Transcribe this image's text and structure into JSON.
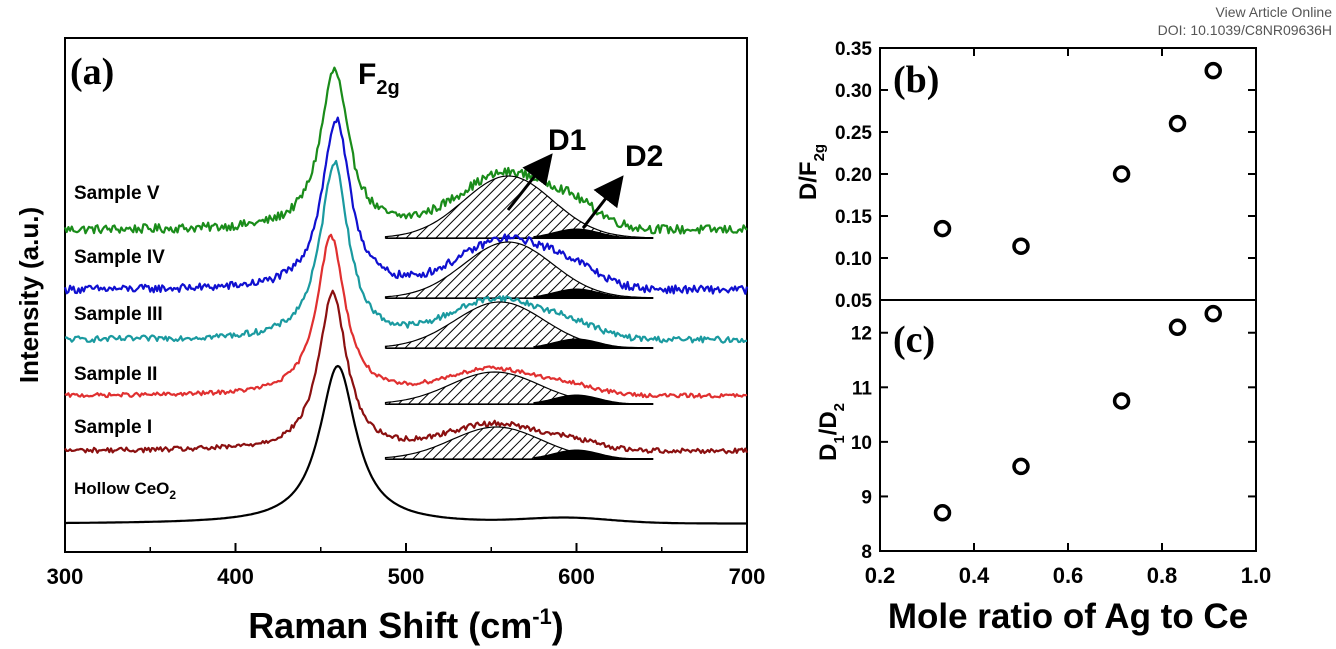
{
  "header": {
    "view_article": "View Article Online",
    "doi": "DOI: 10.1039/C8NR09636H"
  },
  "chart_data": [
    {
      "panel": "(a)",
      "type": "line",
      "xlabel_main": "Raman Shift (cm",
      "xlabel_sup": "-1",
      "xlabel_close": ")",
      "ylabel": "Intensity (a.u.)",
      "xlim": [
        300,
        700
      ],
      "xticks": [
        300,
        400,
        500,
        600,
        700
      ],
      "peak_label_main": "F",
      "peak_label_sub": "2g",
      "d1_label": "D1",
      "d2_label": "D2",
      "series": [
        {
          "name": "Sample V",
          "color": "#1a8c1a",
          "peak_x": 458,
          "d1_x": 560,
          "d2_x": 600,
          "noise": 0.9,
          "fit": true
        },
        {
          "name": "Sample IV",
          "color": "#1010d0",
          "peak_x": 459,
          "d1_x": 560,
          "d2_x": 600,
          "noise": 0.8,
          "fit": true
        },
        {
          "name": "Sample III",
          "color": "#1a9aa0",
          "peak_x": 458,
          "d1_x": 555,
          "d2_x": 600,
          "noise": 0.6,
          "fit": true
        },
        {
          "name": "Sample II",
          "color": "#e03030",
          "peak_x": 456,
          "d1_x": 552,
          "d2_x": 600,
          "noise": 0.4,
          "fit": true
        },
        {
          "name": "Sample I",
          "color": "#8b1010",
          "peak_x": 457,
          "d1_x": 553,
          "d2_x": 600,
          "noise": 0.5,
          "fit": true
        },
        {
          "name_main": "Hollow CeO",
          "name_sub": "2",
          "color": "#000000",
          "peak_x": 460,
          "noise": 0,
          "fit": false
        }
      ]
    },
    {
      "panel": "(b)",
      "type": "scatter",
      "ylabel_main": "D/F",
      "ylabel_sub": "2g",
      "xlim": [
        0.2,
        1.0
      ],
      "ylim": [
        0.05,
        0.35
      ],
      "yticks": [
        "0.05",
        "0.10",
        "0.15",
        "0.20",
        "0.25",
        "0.30",
        "0.35"
      ],
      "x": [
        0.333,
        0.5,
        0.714,
        0.833,
        0.909
      ],
      "y": [
        0.135,
        0.114,
        0.2,
        0.26,
        0.323
      ]
    },
    {
      "panel": "(c)",
      "type": "scatter",
      "ylabel_main": "D",
      "ylabel_sub1": "1",
      "ylabel_mid": "/D",
      "ylabel_sub2": "2",
      "xlim": [
        0.2,
        1.0
      ],
      "ylim": [
        8,
        12.6
      ],
      "yticks": [
        "8",
        "9",
        "10",
        "11",
        "12"
      ],
      "x": [
        0.333,
        0.5,
        0.714,
        0.833,
        0.909
      ],
      "y": [
        8.7,
        9.55,
        10.75,
        12.1,
        12.35
      ],
      "xticks": [
        "0.2",
        "0.4",
        "0.6",
        "0.8",
        "1.0"
      ],
      "xlabel": "Mole ratio of Ag to Ce"
    }
  ]
}
